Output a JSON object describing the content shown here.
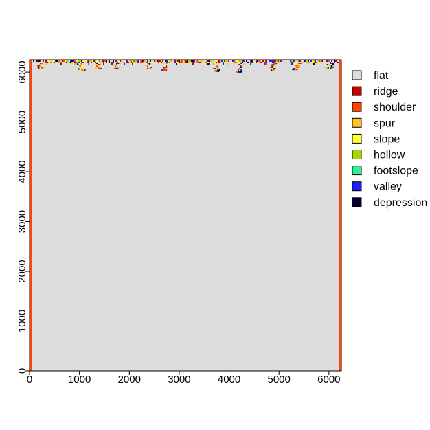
{
  "chart_data": {
    "type": "heatmap",
    "title": "",
    "xlabel": "",
    "ylabel": "",
    "xlim": [
      0,
      6250
    ],
    "ylim": [
      0,
      6250
    ],
    "x_ticks": [
      0,
      1000,
      2000,
      3000,
      4000,
      5000,
      6000
    ],
    "y_ticks": [
      0,
      1000,
      2000,
      3000,
      4000,
      5000,
      6000
    ],
    "x_tick_labels": [
      "0",
      "1000",
      "2000",
      "3000",
      "4000",
      "5000",
      "6000"
    ],
    "y_tick_labels": [
      "0",
      "1000",
      "2000",
      "3000",
      "4000",
      "5000",
      "6000"
    ],
    "legend_position": "right",
    "legend": [
      {
        "label": "flat",
        "color": "#dcdcdc"
      },
      {
        "label": "ridge",
        "color": "#cc0000"
      },
      {
        "label": "shoulder",
        "color": "#ff4500"
      },
      {
        "label": "spur",
        "color": "#ffc125"
      },
      {
        "label": "slope",
        "color": "#ffff33"
      },
      {
        "label": "hollow",
        "color": "#a6d800"
      },
      {
        "label": "footslope",
        "color": "#33ee99"
      },
      {
        "label": "valley",
        "color": "#1f1fff"
      },
      {
        "label": "depression",
        "color": "#000033"
      }
    ],
    "background_class": "flat",
    "edge_classes": {
      "left": "shoulder",
      "right": "shoulder"
    },
    "top_band": {
      "y_range": [
        5950,
        6250
      ],
      "classes": [
        "ridge",
        "shoulder",
        "spur",
        "slope",
        "hollow",
        "valley",
        "depression"
      ],
      "deep_features": [
        {
          "x": 200,
          "y_bottom": 6070
        },
        {
          "x": 1000,
          "y_bottom": 6050
        },
        {
          "x": 1350,
          "y_bottom": 6070
        },
        {
          "x": 1750,
          "y_bottom": 6060
        },
        {
          "x": 2380,
          "y_bottom": 6060
        },
        {
          "x": 2700,
          "y_bottom": 6030
        },
        {
          "x": 3720,
          "y_bottom": 6010
        },
        {
          "x": 4200,
          "y_bottom": 5990
        },
        {
          "x": 4850,
          "y_bottom": 6050
        },
        {
          "x": 5320,
          "y_bottom": 6040
        },
        {
          "x": 6000,
          "y_bottom": 6070
        }
      ]
    }
  }
}
